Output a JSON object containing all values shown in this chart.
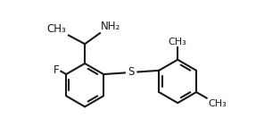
{
  "bg_color": "#ffffff",
  "line_color": "#1a1a1a",
  "line_width": 1.5,
  "font_size_label": 8.5,
  "xlim": [
    -1.2,
    2.8
  ],
  "ylim": [
    -1.1,
    1.35
  ]
}
